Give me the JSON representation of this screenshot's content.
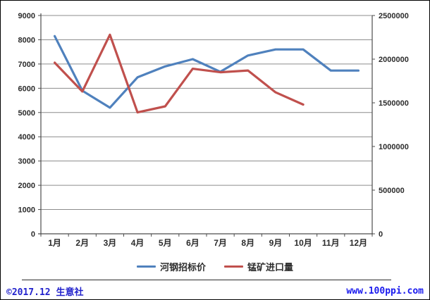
{
  "chart_data": {
    "type": "line",
    "title": "",
    "categories": [
      "1月",
      "2月",
      "3月",
      "4月",
      "5月",
      "6月",
      "7月",
      "8月",
      "9月",
      "10月",
      "11月",
      "12月"
    ],
    "series": [
      {
        "name": "河钢招标价",
        "axis": "left",
        "color": "#4F81BD",
        "values": [
          8150,
          5900,
          5200,
          6450,
          6900,
          7200,
          6680,
          7350,
          7600,
          7600,
          6730,
          6730
        ]
      },
      {
        "name": "锰矿进口量",
        "axis": "right",
        "color": "#C0504D",
        "values": [
          1960000,
          1630000,
          2280000,
          1390000,
          1460000,
          1890000,
          1850000,
          1870000,
          1620000,
          1480000,
          null,
          null
        ]
      }
    ],
    "left_axis": {
      "min": 0,
      "max": 9000,
      "tick_labels": [
        "0",
        "1000",
        "2000",
        "3000",
        "4000",
        "5000",
        "6000",
        "7000",
        "8000",
        "9000"
      ]
    },
    "right_axis": {
      "min": 0,
      "max": 2500000,
      "tick_labels": [
        "0",
        "500000",
        "1000000",
        "1500000",
        "2000000",
        "2500000"
      ]
    },
    "grid": true,
    "legend_position": "bottom"
  },
  "footer": {
    "copyright": "©2017.12 生意社",
    "website": "www.100ppi.com"
  },
  "colors": {
    "grid": "#8C8C8C",
    "axis": "#4D4D4D",
    "tick_label": "#2B2B2B",
    "copyright_text": "#2222CC",
    "link_text": "#1A1AEE"
  }
}
